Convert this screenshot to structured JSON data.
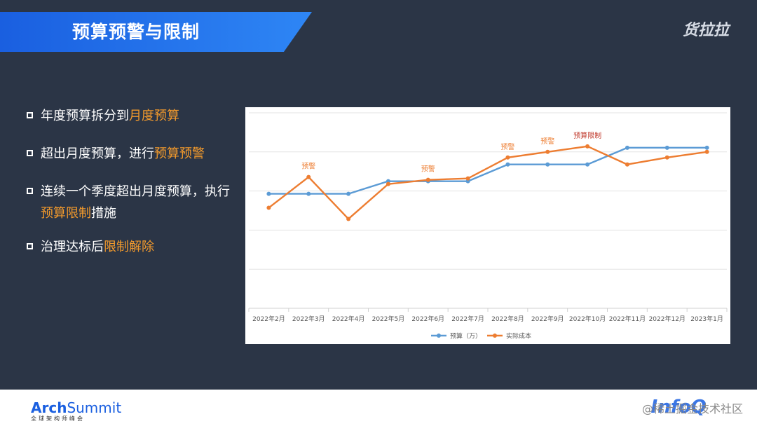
{
  "slide": {
    "title": "预算预警与限制",
    "brand": "货拉拉"
  },
  "bullets": [
    {
      "pre": "年度预算拆分到",
      "hl": "月度预算",
      "post": ""
    },
    {
      "pre": "超出月度预算，进行",
      "hl": "预算预警",
      "post": ""
    },
    {
      "pre": "连续一个季度超出月度预算，执行",
      "hl": "预算限制",
      "post": "措施"
    },
    {
      "pre": "治理达标后",
      "hl": "限制解除",
      "post": ""
    }
  ],
  "footer": {
    "logo_arch": "Arch",
    "logo_summit": "Summit",
    "logo_sub": "全球架构师峰会",
    "infoq": "InfoQ",
    "watermark": "@稀土掘金技术社区"
  },
  "colors": {
    "budget": "#5b9bd5",
    "actual": "#ed7d31",
    "warn_text": "#ed7d31",
    "limit_text": "#c0392b"
  },
  "chart_data": {
    "type": "line",
    "categories": [
      "2022年2月",
      "2022年3月",
      "2022年4月",
      "2022年5月",
      "2022年6月",
      "2022年7月",
      "2022年8月",
      "2022年9月",
      "2022年10月",
      "2022年11月",
      "2022年12月",
      "2023年1月"
    ],
    "series": [
      {
        "name": "预算（万）",
        "values": [
          82,
          82,
          82,
          91,
          91,
          91,
          103,
          103,
          103,
          115,
          115,
          115
        ]
      },
      {
        "name": "实际成本",
        "values": [
          72,
          94,
          64,
          89,
          92,
          93,
          108,
          112,
          116,
          103,
          108,
          112
        ]
      }
    ],
    "annotations": [
      {
        "category": "2022年3月",
        "text": "预警",
        "kind": "warn"
      },
      {
        "category": "2022年6月",
        "text": "预警",
        "kind": "warn"
      },
      {
        "category": "2022年8月",
        "text": "预警",
        "kind": "warn"
      },
      {
        "category": "2022年9月",
        "text": "预警",
        "kind": "warn"
      },
      {
        "category": "2022年10月",
        "text": "预算限制",
        "kind": "limit"
      }
    ],
    "ylim": [
      0,
      140
    ],
    "grid": true,
    "legend": "bottom"
  }
}
